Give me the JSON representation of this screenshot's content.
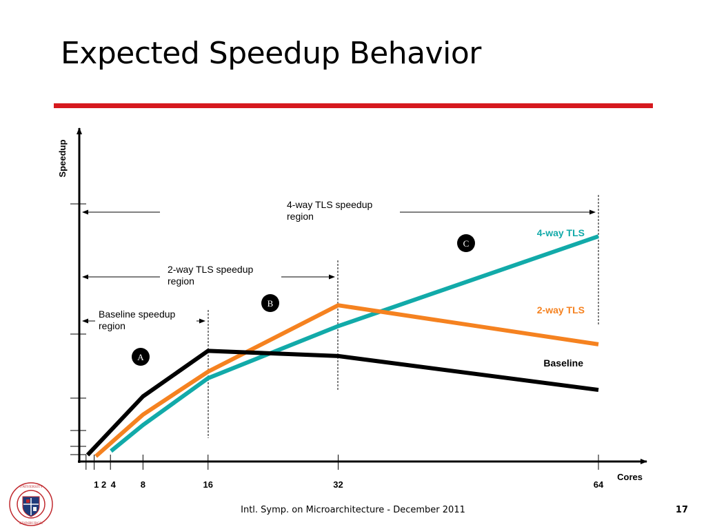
{
  "slide": {
    "title": "Expected Speedup Behavior",
    "footer": "Intl. Symp. on Microarchitecture - December 2011",
    "page_number": "17",
    "logo": "university-seal",
    "logo_text": "THE UNIVERSITY OF EDINBURGH",
    "rule_color": "#d6191e"
  },
  "chart_data": {
    "type": "line",
    "xlabel": "Cores",
    "ylabel": "Speedup",
    "x_ticks": [
      1,
      2,
      4,
      8,
      16,
      32,
      64
    ],
    "x_tick_labels": [
      "1",
      "2",
      "4",
      "8",
      "16",
      "32",
      "64"
    ],
    "y_tick_labels": [],
    "series": [
      {
        "name": "Baseline",
        "color": "#000000",
        "points": [
          [
            1,
            0.5
          ],
          [
            8,
            5.0
          ],
          [
            16,
            8.5
          ],
          [
            32,
            8.1
          ],
          [
            64,
            5.5
          ]
        ]
      },
      {
        "name": "2-way TLS",
        "color": "#f58220",
        "points": [
          [
            2,
            0.4
          ],
          [
            8,
            3.6
          ],
          [
            16,
            6.9
          ],
          [
            32,
            12.0
          ],
          [
            64,
            9.0
          ]
        ]
      },
      {
        "name": "4-way TLS",
        "color": "#12aaa9",
        "points": [
          [
            4,
            0.8
          ],
          [
            8,
            2.8
          ],
          [
            16,
            6.4
          ],
          [
            32,
            10.4
          ],
          [
            64,
            17.3
          ]
        ]
      }
    ],
    "regions": [
      {
        "label": "Baseline speedup region",
        "end_x": 16
      },
      {
        "label": "2-way TLS speedup region",
        "end_x": 32
      },
      {
        "label": "4-way TLS speedup region",
        "end_x": 64
      }
    ],
    "markers": [
      {
        "label": "A",
        "near_x": 12
      },
      {
        "label": "B",
        "near_x": 24
      },
      {
        "label": "C",
        "near_x": 45
      }
    ],
    "grid": false,
    "legend": "inline labels at right end of lines"
  }
}
